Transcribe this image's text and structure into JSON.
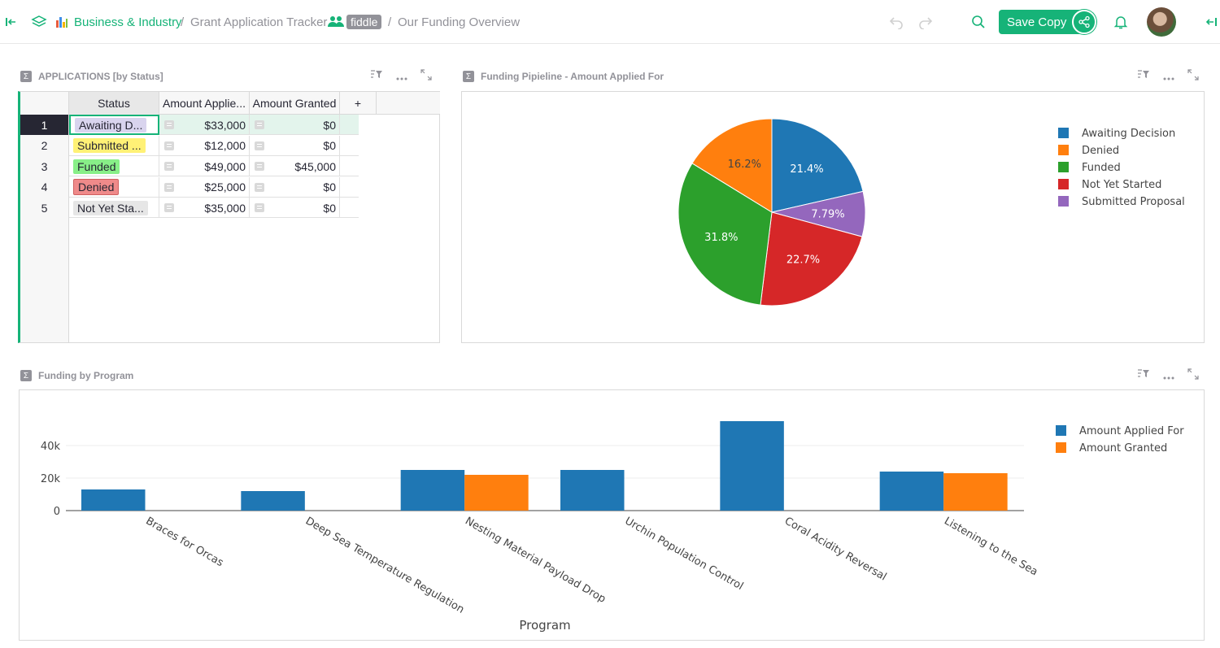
{
  "header": {
    "breadcrumb_org": "Business & Industry",
    "breadcrumb_sep1": "/",
    "breadcrumb_doc": "Grant Application Tracker",
    "mode_tag": "fiddle",
    "breadcrumb_sep2": "/",
    "breadcrumb_page": "Our Funding Overview",
    "save_copy_label": "Save Copy"
  },
  "applications_widget": {
    "title": "APPLICATIONS [by Status]",
    "columns": [
      "Status",
      "Amount Applie...",
      "Amount Granted",
      "+"
    ],
    "rows": [
      {
        "num": "1",
        "status": "Awaiting D...",
        "applied": "$33,000",
        "granted": "$0",
        "status_color": "#d9d4ee"
      },
      {
        "num": "2",
        "status": "Submitted ...",
        "applied": "$12,000",
        "granted": "$0",
        "status_color": "#fff176"
      },
      {
        "num": "3",
        "status": "Funded",
        "applied": "$49,000",
        "granted": "$45,000",
        "status_color": "#88ef88"
      },
      {
        "num": "4",
        "status": "Denied",
        "applied": "$25,000",
        "granted": "$0",
        "status_color": "#ef8a8a"
      },
      {
        "num": "5",
        "status": "Not Yet Sta...",
        "applied": "$35,000",
        "granted": "$0",
        "status_color": "#e6e6e6"
      }
    ]
  },
  "pie_widget": {
    "title": "Funding Pipieline - Amount Applied For"
  },
  "bar_widget": {
    "title": "Funding by Program"
  },
  "chart_data": [
    {
      "type": "pie",
      "title": "Funding Pipieline - Amount Applied For",
      "labels": [
        "Awaiting Decision",
        "Denied",
        "Funded",
        "Not Yet Started",
        "Submitted Proposal"
      ],
      "values": [
        33000,
        25000,
        49000,
        35000,
        12000
      ],
      "percent_labels": [
        "21.4%",
        "16.2%",
        "31.8%",
        "22.7%",
        "7.79%"
      ],
      "colors": [
        "#1f77b4",
        "#ff7f0e",
        "#2ca02c",
        "#d62728",
        "#9467bd"
      ],
      "slice_order": [
        "Awaiting Decision",
        "Submitted Proposal",
        "Not Yet Started",
        "Funded",
        "Denied"
      ],
      "legend_position": "right"
    },
    {
      "type": "bar",
      "title": "Funding by Program",
      "xlabel": "Program",
      "ylabel": "",
      "categories": [
        "Braces for Orcas",
        "Deep Sea Temperature Regulation",
        "Nesting Material Payload Drop",
        "Urchin Population Control",
        "Coral Acidity Reversal",
        "Listening to the Sea"
      ],
      "series": [
        {
          "name": "Amount Applied For",
          "color": "#1f77b4",
          "values": [
            13000,
            12000,
            25000,
            25000,
            55000,
            24000
          ]
        },
        {
          "name": "Amount Granted",
          "color": "#ff7f0e",
          "values": [
            0,
            0,
            22000,
            0,
            0,
            23000
          ]
        }
      ],
      "yticks": [
        0,
        20000,
        40000
      ],
      "ytick_labels": [
        "0",
        "20k",
        "40k"
      ],
      "ylim": [
        0,
        60000
      ],
      "grid": true,
      "legend_position": "top-right"
    }
  ]
}
